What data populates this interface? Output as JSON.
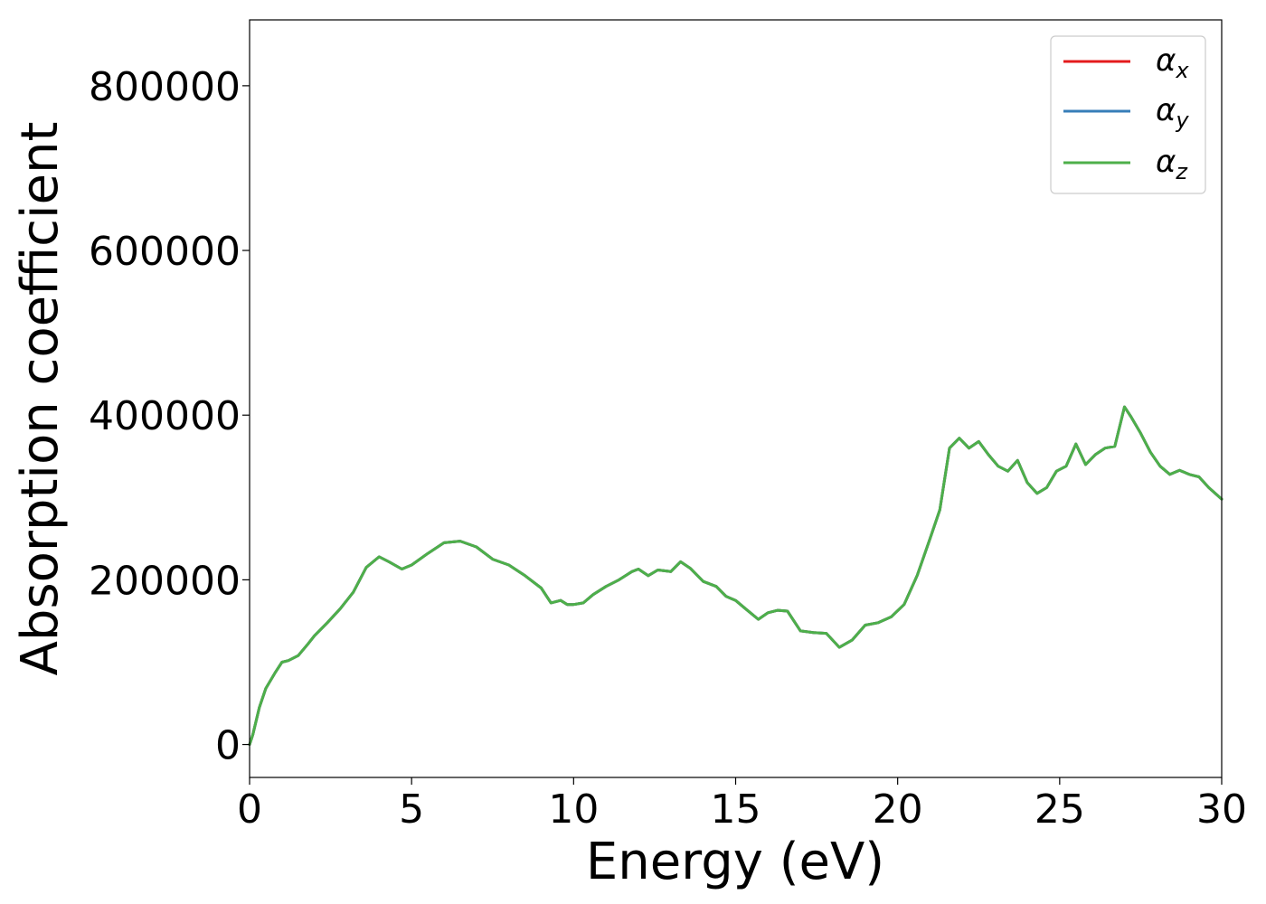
{
  "chart_data": {
    "type": "line",
    "title": "",
    "xlabel": "Energy (eV)",
    "ylabel": "Absorption coefficient",
    "xlim": [
      0,
      30
    ],
    "ylim": [
      -40000,
      880000
    ],
    "xticks": [
      0,
      5,
      10,
      15,
      20,
      25,
      30
    ],
    "yticks": [
      0,
      200000,
      400000,
      600000,
      800000
    ],
    "grid": false,
    "legend_position": "top-right",
    "series": [
      {
        "name": "x",
        "color": "#e41a1c"
      },
      {
        "name": "y",
        "color": "#377eb8"
      },
      {
        "name": "z",
        "color": "#4daf4a"
      }
    ],
    "x": [
      0,
      0.1,
      0.3,
      0.5,
      0.8,
      1.0,
      1.2,
      1.5,
      1.8,
      2.0,
      2.4,
      2.8,
      3.2,
      3.6,
      4.0,
      4.3,
      4.7,
      5.0,
      5.5,
      6.0,
      6.5,
      7.0,
      7.5,
      8.0,
      8.5,
      9.0,
      9.3,
      9.6,
      9.8,
      10.0,
      10.3,
      10.6,
      11.0,
      11.4,
      11.8,
      12.0,
      12.3,
      12.6,
      13.0,
      13.3,
      13.6,
      14.0,
      14.4,
      14.7,
      15.0,
      15.3,
      15.7,
      16.0,
      16.3,
      16.6,
      17.0,
      17.4,
      17.8,
      18.2,
      18.6,
      19.0,
      19.4,
      19.8,
      20.2,
      20.6,
      21.0,
      21.3,
      21.6,
      21.9,
      22.2,
      22.5,
      22.8,
      23.1,
      23.4,
      23.7,
      24.0,
      24.3,
      24.6,
      24.9,
      25.2,
      25.5,
      25.8,
      26.1,
      26.4,
      26.7,
      27.0,
      27.2,
      27.5,
      27.8,
      28.1,
      28.4,
      28.7,
      29.0,
      29.3,
      29.6,
      30.0
    ],
    "values": [
      0,
      12000,
      45000,
      68000,
      88000,
      100000,
      102000,
      108000,
      122000,
      132000,
      148000,
      165000,
      185000,
      215000,
      228000,
      222000,
      213000,
      218000,
      232000,
      245000,
      247000,
      240000,
      225000,
      218000,
      205000,
      190000,
      172000,
      175000,
      170000,
      170000,
      172000,
      182000,
      192000,
      200000,
      210000,
      213000,
      205000,
      212000,
      210000,
      222000,
      214000,
      198000,
      192000,
      180000,
      175000,
      165000,
      152000,
      160000,
      163000,
      162000,
      138000,
      136000,
      135000,
      118000,
      127000,
      145000,
      148000,
      155000,
      170000,
      205000,
      250000,
      285000,
      360000,
      372000,
      360000,
      368000,
      352000,
      338000,
      332000,
      345000,
      318000,
      305000,
      312000,
      332000,
      338000,
      365000,
      340000,
      352000,
      360000,
      362000,
      410000,
      398000,
      378000,
      355000,
      338000,
      328000,
      333000,
      328000,
      325000,
      312000,
      298000
    ]
  },
  "legend": {
    "symbol": "α",
    "entries": [
      "x",
      "y",
      "z"
    ]
  }
}
